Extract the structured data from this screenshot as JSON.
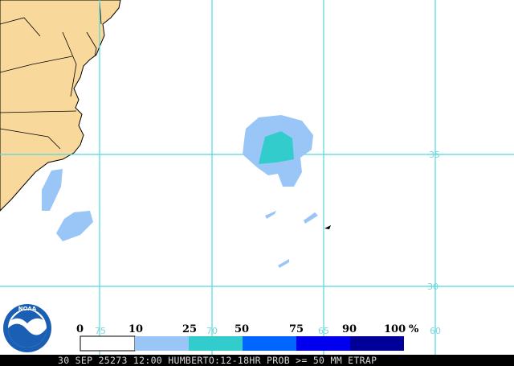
{
  "map": {
    "lat_labels": [
      "35",
      "30"
    ],
    "lon_labels": [
      "75",
      "70",
      "65",
      "60"
    ]
  },
  "legend": {
    "labels": [
      "0",
      "10",
      "25",
      "50",
      "75",
      "90",
      "100"
    ],
    "unit": "%"
  },
  "logo": "NOAA",
  "footer": "30 SEP 25273 12:00 HUMBERTO:12-18HR PROB >= 50 MM ETRAP"
}
